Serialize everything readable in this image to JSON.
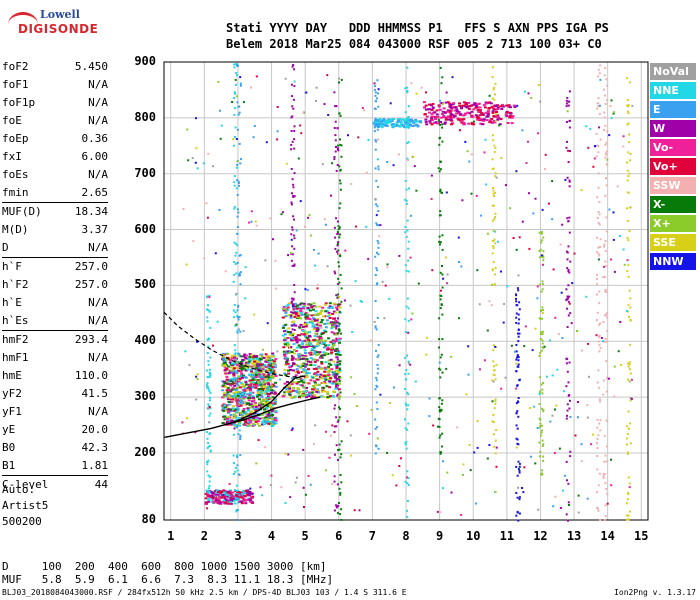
{
  "logo": {
    "line1": "Lowell",
    "line2": "DIGISONDE"
  },
  "header": {
    "line1": "Stati YYYY DAY   DDD HHMMSS P1   FFS S AXN PPS IGA PS",
    "line2": "Belem 2018 Mar25 084 043000 RSF 005 2 713 100 03+ C0"
  },
  "params": [
    {
      "name": "foF2",
      "value": "5.450"
    },
    {
      "name": "foF1",
      "value": "N/A"
    },
    {
      "name": "foF1p",
      "value": "N/A"
    },
    {
      "name": "foE",
      "value": "N/A"
    },
    {
      "name": "foEp",
      "value": "0.36"
    },
    {
      "name": "fxI",
      "value": "6.00"
    },
    {
      "name": "foEs",
      "value": "N/A"
    },
    {
      "name": "fmin",
      "value": "2.65"
    },
    {
      "name": "MUF(D)",
      "value": "18.34",
      "sep": true
    },
    {
      "name": "M(D)",
      "value": "3.37"
    },
    {
      "name": "D",
      "value": "N/A"
    },
    {
      "name": "h`F",
      "value": "257.0",
      "sep": true
    },
    {
      "name": "h`F2",
      "value": "257.0"
    },
    {
      "name": "h`E",
      "value": "N/A"
    },
    {
      "name": "h`Es",
      "value": "N/A"
    },
    {
      "name": "hmF2",
      "value": "293.4",
      "sep": true
    },
    {
      "name": "hmF1",
      "value": "N/A"
    },
    {
      "name": "hmE",
      "value": "110.0"
    },
    {
      "name": "yF2",
      "value": "41.5"
    },
    {
      "name": "yF1",
      "value": "N/A"
    },
    {
      "name": "yE",
      "value": "20.0"
    },
    {
      "name": "B0",
      "value": "42.3"
    },
    {
      "name": "B1",
      "value": "1.81"
    },
    {
      "name": "C-level",
      "value": "44",
      "sep": true
    }
  ],
  "auto": {
    "line1": "Auto:",
    "line2": "Artist5",
    "line3": "500200"
  },
  "dmuf": {
    "d_row": "D     100  200  400  600  800 1000 1500 3000 [km]",
    "muf_row": "MUF   5.8  5.9  6.1  6.6  7.3  8.3 11.1 18.3 [MHz]"
  },
  "footer": "BLJ03_2018084043000.RSF / 284fx512h 50 kHz 2.5 km / DPS-4D BLJ03 103 / 1.4 S 311.6 E",
  "version": "Ion2Png v. 1.3.17",
  "legend": [
    {
      "label": "NoVal",
      "color": "#a0a0a0"
    },
    {
      "label": "NNE",
      "color": "#22d8e6"
    },
    {
      "label": "E",
      "color": "#3aa0f0"
    },
    {
      "label": "W",
      "color": "#a000a8"
    },
    {
      "label": "Vo-",
      "color": "#f0209a"
    },
    {
      "label": "Vo+",
      "color": "#e0003a"
    },
    {
      "label": "SSW",
      "color": "#f4b0b0"
    },
    {
      "label": "X-",
      "color": "#087a0a"
    },
    {
      "label": "X+",
      "color": "#8ccc2a"
    },
    {
      "label": "SSE",
      "color": "#d8d018"
    },
    {
      "label": "NNW",
      "color": "#1414e8"
    }
  ],
  "chart_data": {
    "type": "scatter",
    "xlabel": "",
    "ylabel": "",
    "xlim": [
      0.8,
      15.2
    ],
    "ylim": [
      80,
      900
    ],
    "x_ticks": [
      "1",
      "2",
      "3",
      "4",
      "5",
      "6",
      "7",
      "8",
      "9",
      "10",
      "11",
      "12",
      "13",
      "14",
      "15"
    ],
    "y_ticks": [
      "80",
      "200",
      "300",
      "400",
      "500",
      "600",
      "700",
      "800",
      "900"
    ],
    "grid": true,
    "trace_fit": [
      {
        "x": 0.82,
        "y": 228
      },
      {
        "x": 1.5,
        "y": 236
      },
      {
        "x": 2.2,
        "y": 244
      },
      {
        "x": 2.7,
        "y": 252
      },
      {
        "x": 3.1,
        "y": 258
      },
      {
        "x": 3.6,
        "y": 268
      },
      {
        "x": 4.1,
        "y": 280
      },
      {
        "x": 4.6,
        "y": 288
      },
      {
        "x": 5.0,
        "y": 294
      },
      {
        "x": 5.45,
        "y": 300
      }
    ],
    "profile": [
      {
        "x": 2.6,
        "y": 250
      },
      {
        "x": 3.0,
        "y": 258
      },
      {
        "x": 3.5,
        "y": 272
      },
      {
        "x": 4.0,
        "y": 292
      },
      {
        "x": 4.4,
        "y": 318
      },
      {
        "x": 4.7,
        "y": 334
      },
      {
        "x": 5.0,
        "y": 338
      }
    ],
    "profile_extrap": [
      {
        "x": 0.8,
        "y": 452
      },
      {
        "x": 1.2,
        "y": 428
      },
      {
        "x": 1.7,
        "y": 405
      },
      {
        "x": 2.2,
        "y": 385
      },
      {
        "x": 2.8,
        "y": 366
      },
      {
        "x": 3.4,
        "y": 352
      },
      {
        "x": 4.0,
        "y": 342
      },
      {
        "x": 4.6,
        "y": 336
      },
      {
        "x": 5.0,
        "y": 338
      }
    ]
  }
}
